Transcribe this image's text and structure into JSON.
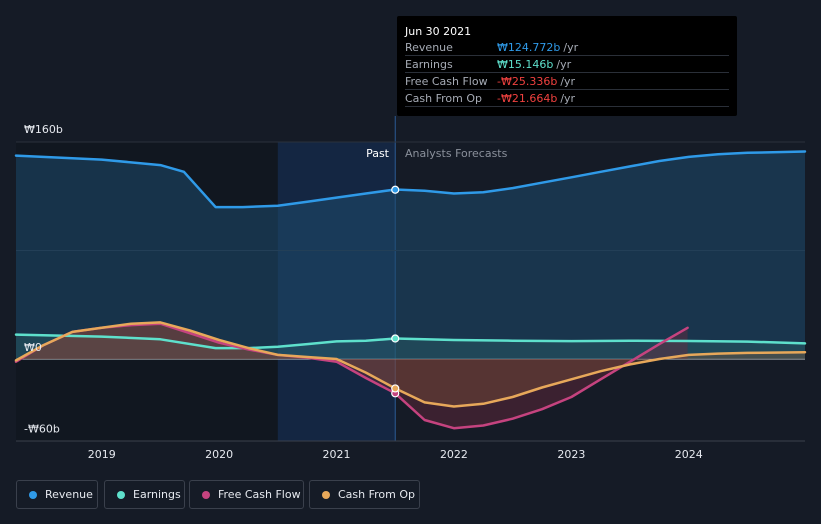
{
  "tooltip": {
    "date": "Jun 30 2021",
    "rows": [
      {
        "label": "Revenue",
        "value": "₩124.772b",
        "unit": "/yr",
        "color": "#2f9ae8"
      },
      {
        "label": "Earnings",
        "value": "₩15.146b",
        "unit": "/yr",
        "color": "#5ee0cc"
      },
      {
        "label": "Free Cash Flow",
        "value": "-₩25.336b",
        "unit": "/yr",
        "color": "#f0413f"
      },
      {
        "label": "Cash From Op",
        "value": "-₩21.664b",
        "unit": "/yr",
        "color": "#f0413f"
      }
    ]
  },
  "labels": {
    "past": "Past",
    "forecast": "Analysts Forecasts"
  },
  "legend": [
    {
      "label": "Revenue",
      "color": "#2f9ae8"
    },
    {
      "label": "Earnings",
      "color": "#5ee0cc"
    },
    {
      "label": "Free Cash Flow",
      "color": "#c5437f"
    },
    {
      "label": "Cash From Op",
      "color": "#e7a85a"
    }
  ],
  "chart_data": {
    "type": "line",
    "y_tick_labels": [
      "₩160b",
      "₩0",
      "-₩60b"
    ],
    "y_ticks": [
      160,
      0,
      -60
    ],
    "ylim": [
      -60,
      160
    ],
    "x_tick_labels": [
      "2019",
      "2020",
      "2021",
      "2022",
      "2023",
      "2024"
    ],
    "x_ticks": [
      2019,
      2020,
      2021,
      2022,
      2023,
      2024
    ],
    "xlim": [
      2018.27,
      2024.99
    ],
    "divider_x": 2021.5,
    "past_band_start": 2020.5,
    "highlight_points": [
      {
        "series": "Revenue",
        "x": 2021.5,
        "y": 124.8
      },
      {
        "series": "Earnings",
        "x": 2021.5,
        "y": 15.1
      },
      {
        "series": "Free Cash Flow",
        "x": 2021.5,
        "y": -25.3
      },
      {
        "series": "Cash From Op",
        "x": 2021.5,
        "y": -21.7
      }
    ],
    "series": [
      {
        "name": "Revenue",
        "color": "#2f9ae8",
        "fill": true,
        "x": [
          2018.27,
          2018.5,
          2019.0,
          2019.5,
          2019.7,
          2019.97,
          2020.2,
          2020.5,
          2020.75,
          2021.0,
          2021.25,
          2021.5,
          2021.75,
          2022.0,
          2022.25,
          2022.5,
          2022.75,
          2023.0,
          2023.25,
          2023.5,
          2023.75,
          2024.0,
          2024.25,
          2024.5,
          2024.99
        ],
        "y": [
          150,
          149,
          147,
          143,
          138,
          112,
          112,
          113,
          116,
          119,
          122,
          125,
          124,
          122,
          123,
          126,
          130,
          134,
          138,
          142,
          146,
          149,
          151,
          152,
          153
        ]
      },
      {
        "name": "Earnings",
        "color": "#5ee0cc",
        "fill": true,
        "x": [
          2018.27,
          2018.5,
          2019.0,
          2019.5,
          2019.97,
          2020.25,
          2020.5,
          2020.75,
          2021.0,
          2021.25,
          2021.5,
          2022.0,
          2022.5,
          2023.0,
          2023.5,
          2024.0,
          2024.5,
          2024.99
        ],
        "y": [
          18,
          17.5,
          16.5,
          14.5,
          8,
          8,
          9,
          11,
          13,
          13.5,
          15.1,
          14,
          13.5,
          13.2,
          13.5,
          13.3,
          12.8,
          11.5
        ]
      },
      {
        "name": "Free Cash Flow",
        "color": "#c5437f",
        "fill": true,
        "x": [
          2018.27,
          2018.5,
          2018.75,
          2019.0,
          2019.25,
          2019.5,
          2019.75,
          2020.0,
          2020.25,
          2020.5,
          2020.75,
          2021.0,
          2021.25,
          2021.5,
          2021.75,
          2022.0,
          2022.25,
          2022.5,
          2022.75,
          2023.0,
          2023.25,
          2023.5,
          2023.75,
          2023.99
        ],
        "y": [
          -2,
          10,
          20,
          23,
          25,
          26,
          19,
          12,
          7,
          3,
          1,
          -2,
          -14,
          -25.3,
          -45,
          -51,
          -49,
          -44,
          -37,
          -28,
          -15,
          -2,
          11,
          23
        ]
      },
      {
        "name": "Cash From Op",
        "color": "#e7a85a",
        "fill": true,
        "x": [
          2018.27,
          2018.5,
          2018.75,
          2019.0,
          2019.25,
          2019.5,
          2019.75,
          2020.0,
          2020.25,
          2020.5,
          2020.75,
          2021.0,
          2021.25,
          2021.5,
          2021.75,
          2022.0,
          2022.25,
          2022.5,
          2022.75,
          2023.0,
          2023.25,
          2023.5,
          2023.75,
          2024.0,
          2024.25,
          2024.5,
          2024.99
        ],
        "y": [
          -1,
          10,
          20,
          23,
          26,
          27,
          21,
          14,
          8,
          3,
          1.5,
          0,
          -10,
          -21.7,
          -32,
          -35,
          -33,
          -28,
          -21,
          -15,
          -9,
          -4,
          0,
          3,
          4,
          4.5,
          5
        ]
      }
    ]
  }
}
